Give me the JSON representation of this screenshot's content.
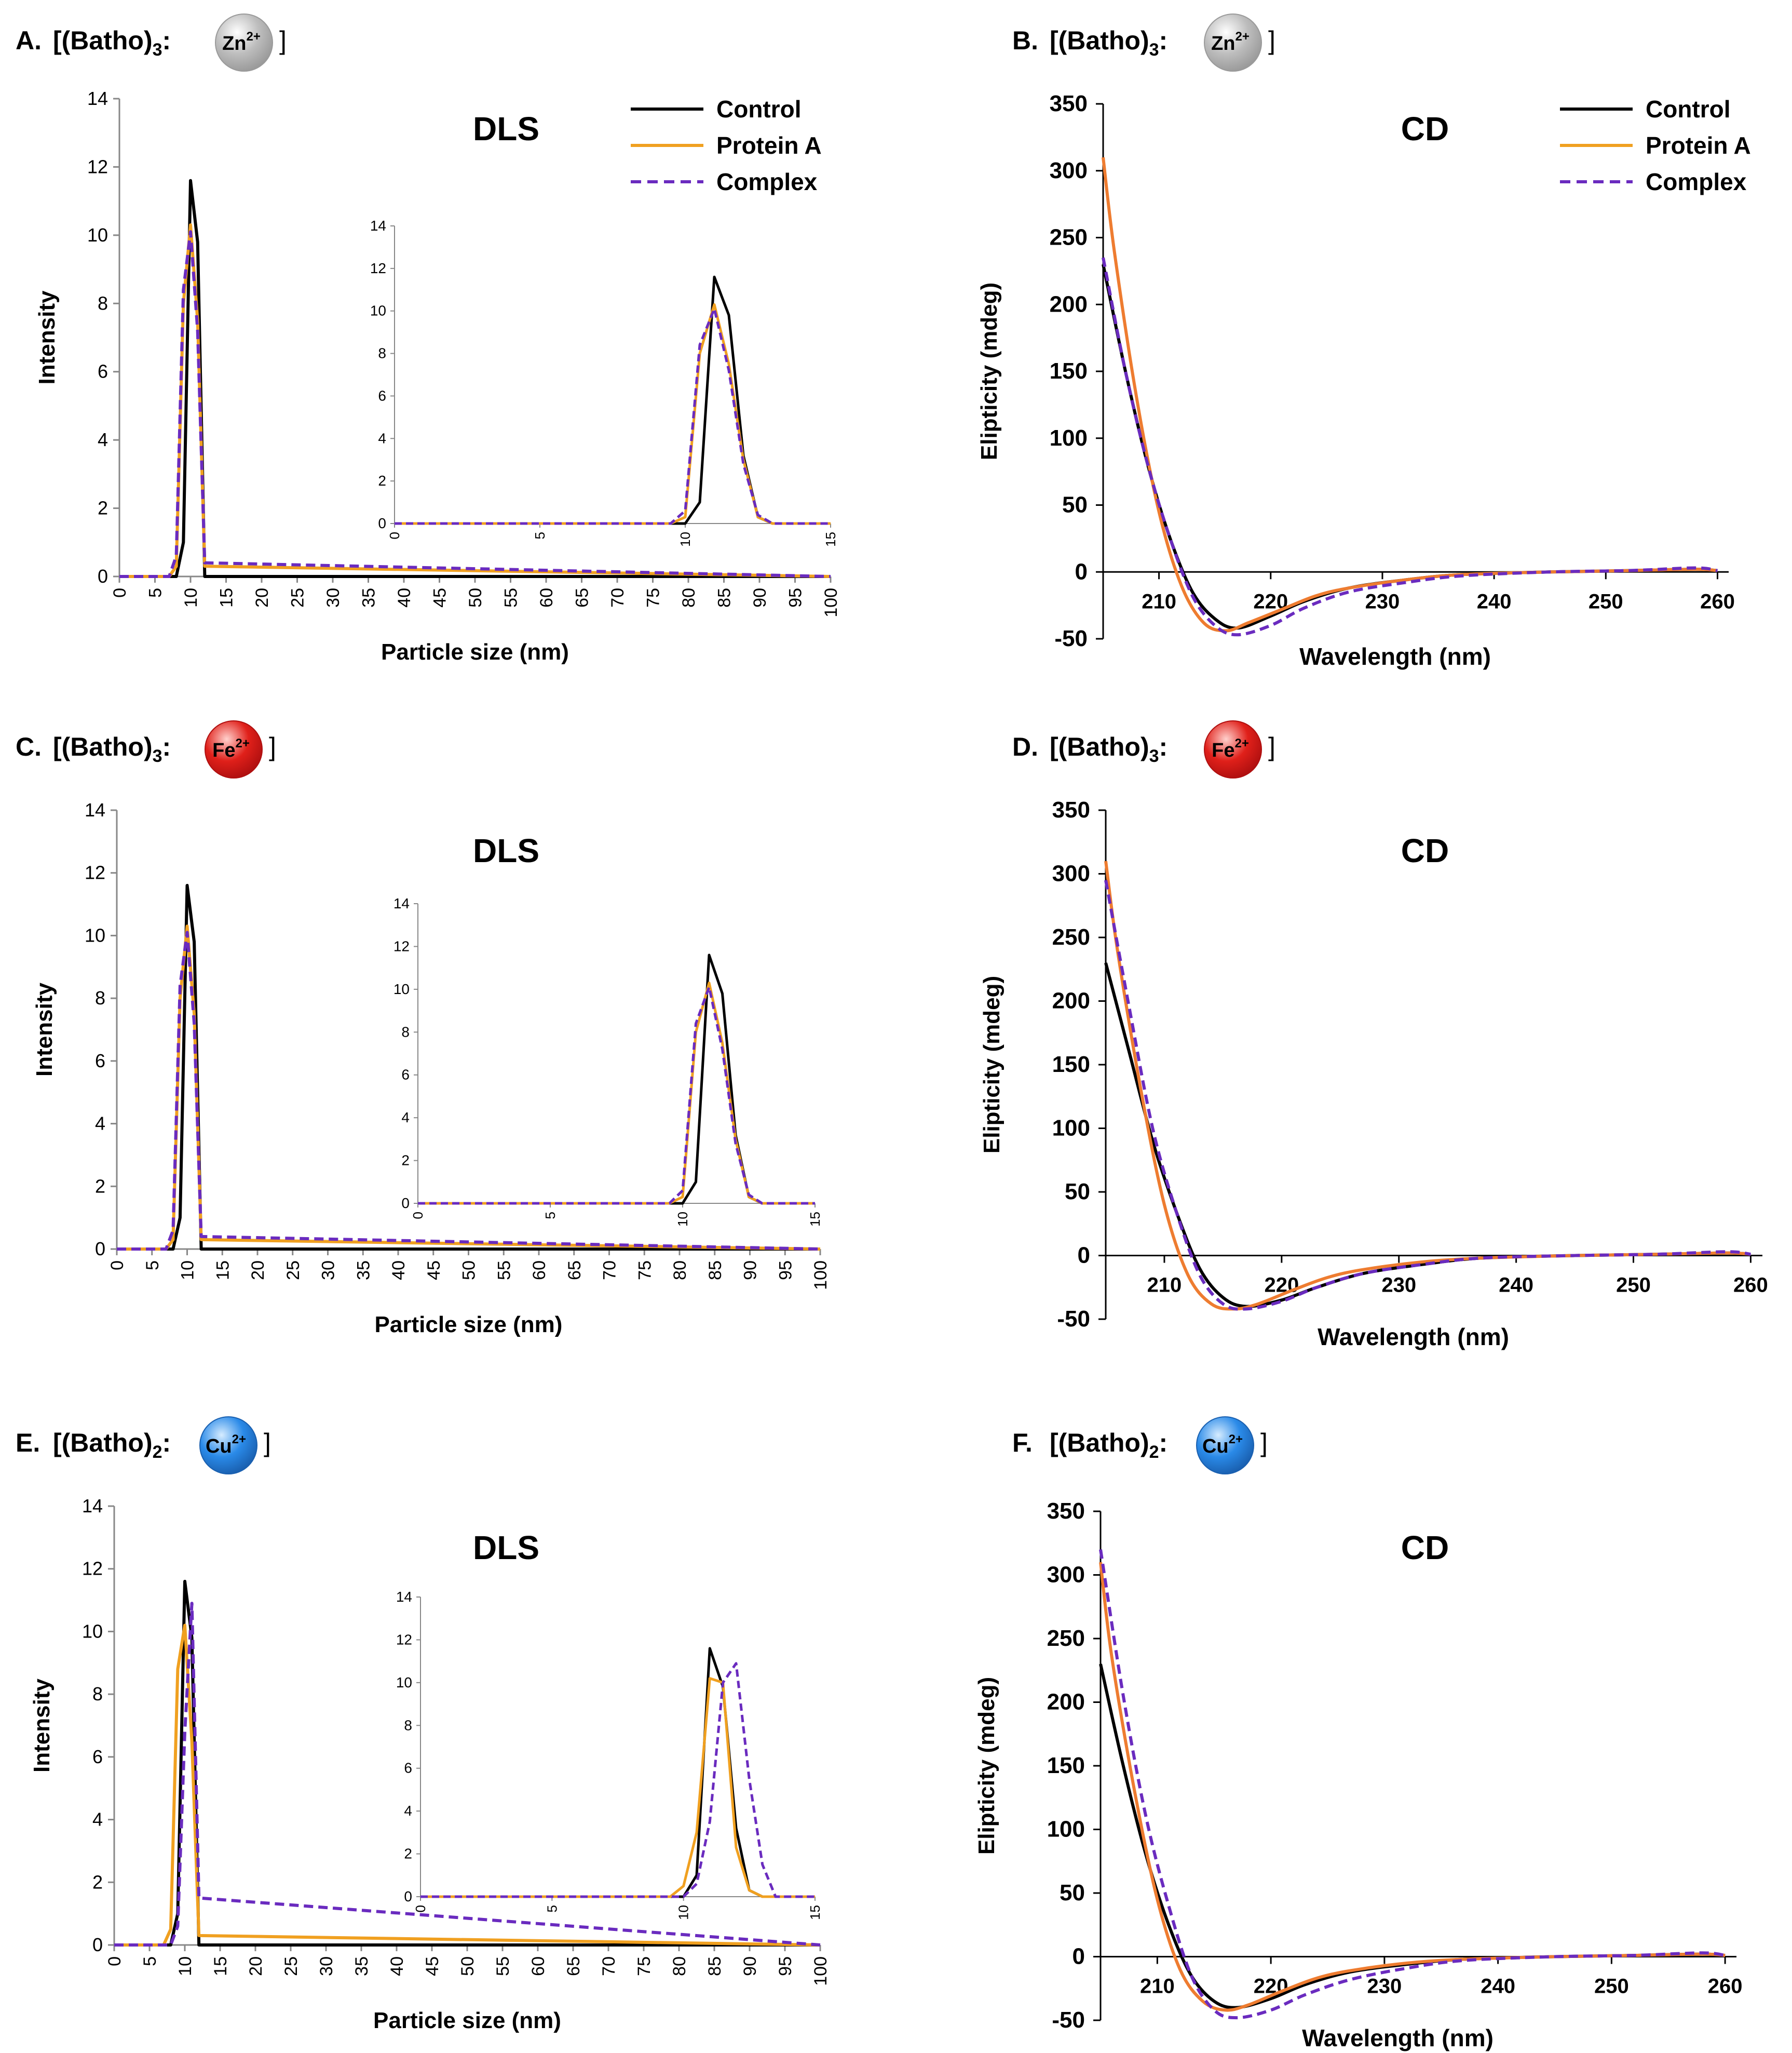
{
  "legend": {
    "items": [
      {
        "name": "Control",
        "color": "#000000",
        "dash": false
      },
      {
        "name": "Protein A",
        "color": "#f0a020",
        "dash": false
      },
      {
        "name": "Complex",
        "color": "#6a2bbf",
        "dash": true
      }
    ]
  },
  "colors": {
    "control": "#000000",
    "protein_a": "#f0a020",
    "complex": "#6a2bbf",
    "cd_protein_a": "#ee7c30"
  },
  "ions": {
    "zn": {
      "symbol": "Zn",
      "charge": "2+",
      "base": "#bdbdbd",
      "hi": "#ffffff",
      "edge": "#9a9a9a"
    },
    "fe": {
      "symbol": "Fe",
      "charge": "2+",
      "base": "#e0201a",
      "hi": "#ffd0cc",
      "edge": "#b01010"
    },
    "cu": {
      "symbol": "Cu",
      "charge": "2+",
      "base": "#2a8ae8",
      "hi": "#d6ecff",
      "edge": "#1a60b0"
    }
  },
  "panels": [
    {
      "letter": "A.",
      "prefix": "[(Batho)",
      "sub": "3",
      "colon": ":",
      "suffix": "]",
      "ion": "zn"
    },
    {
      "letter": "B.",
      "prefix": "[(Batho)",
      "sub": "3",
      "colon": ":",
      "suffix": "]",
      "ion": "zn"
    },
    {
      "letter": "C.",
      "prefix": "[(Batho)",
      "sub": "3",
      "colon": ":",
      "suffix": "]",
      "ion": "fe"
    },
    {
      "letter": "D.",
      "prefix": "[(Batho)",
      "sub": "3",
      "colon": ":",
      "suffix": "]",
      "ion": "fe"
    },
    {
      "letter": "E.",
      "prefix": "[(Batho)",
      "sub": "2",
      "colon": ":",
      "suffix": "]",
      "ion": "cu"
    },
    {
      "letter": "F.",
      "prefix": "[(Batho)",
      "sub": "2",
      "colon": ":",
      "suffix": "]",
      "ion": "cu"
    }
  ],
  "chart_data": [
    {
      "id": "A",
      "type": "line",
      "title": "DLS",
      "xlabel": "Particle size (nm)",
      "ylabel": "Intensity",
      "xlim": [
        0,
        100
      ],
      "ylim": [
        0,
        14
      ],
      "xticks": [
        0,
        5,
        10,
        15,
        20,
        25,
        30,
        35,
        40,
        45,
        50,
        55,
        60,
        65,
        70,
        75,
        80,
        85,
        90,
        95,
        100
      ],
      "yticks": [
        0,
        2,
        4,
        6,
        8,
        10,
        12,
        14
      ],
      "series": [
        {
          "name": "Control",
          "x": [
            0,
            7,
            8,
            9,
            10,
            11,
            12,
            100
          ],
          "y": [
            0,
            0,
            0,
            1.0,
            11.6,
            9.8,
            0,
            0
          ]
        },
        {
          "name": "Protein A",
          "x": [
            0,
            7,
            8,
            9,
            10,
            11,
            12,
            100
          ],
          "y": [
            0,
            0,
            0.3,
            8.0,
            10.3,
            7.5,
            0.3,
            0
          ]
        },
        {
          "name": "Complex",
          "x": [
            0,
            7,
            8,
            9,
            10,
            11,
            12,
            100
          ],
          "y": [
            0,
            0,
            0.6,
            8.4,
            10.1,
            7.2,
            0.4,
            0
          ]
        }
      ],
      "inset": {
        "xlim": [
          0,
          15
        ],
        "ylim": [
          0,
          14
        ],
        "xticks": [
          0,
          5,
          10,
          15
        ],
        "yticks": [
          0,
          2,
          4,
          6,
          8,
          10,
          12,
          14
        ],
        "series": [
          {
            "name": "Control",
            "x": [
              0,
              9.5,
              10,
              10.5,
              11,
              11.5,
              12,
              12.5,
              13,
              15
            ],
            "y": [
              0,
              0,
              0,
              1.0,
              11.6,
              9.8,
              3.2,
              0.3,
              0,
              0
            ]
          },
          {
            "name": "Protein A",
            "x": [
              0,
              9.5,
              10,
              10.5,
              11,
              11.5,
              12,
              12.5,
              13,
              15
            ],
            "y": [
              0,
              0,
              0.3,
              8.0,
              10.3,
              7.5,
              3.0,
              0.3,
              0,
              0
            ]
          },
          {
            "name": "Complex",
            "x": [
              0,
              9.5,
              10,
              10.5,
              11,
              11.5,
              12,
              12.5,
              13,
              15
            ],
            "y": [
              0,
              0,
              0.6,
              8.4,
              10.1,
              7.2,
              2.8,
              0.4,
              0,
              0
            ]
          }
        ]
      }
    },
    {
      "id": "B",
      "type": "line",
      "title": "CD",
      "xlabel": "Wavelength (nm)",
      "ylabel": "Elipticity (mdeg)",
      "xlim": [
        205,
        261
      ],
      "ylim": [
        -50,
        350
      ],
      "xticks": [
        210,
        220,
        230,
        240,
        250,
        260
      ],
      "yticks": [
        -50,
        0,
        50,
        100,
        150,
        200,
        250,
        300,
        350
      ],
      "series": [
        {
          "name": "Control",
          "x": [
            205,
            207,
            209,
            211,
            213,
            215,
            217,
            220,
            223,
            227,
            232,
            237,
            245,
            252,
            258,
            260
          ],
          "y": [
            230,
            150,
            80,
            25,
            -15,
            -35,
            -42,
            -33,
            -22,
            -12,
            -6,
            -2,
            0,
            1,
            2,
            1
          ]
        },
        {
          "name": "Protein A",
          "x": [
            205,
            206,
            208,
            210,
            212,
            214,
            216,
            218,
            221,
            224,
            227,
            232,
            237,
            245,
            252,
            258,
            260
          ],
          "y": [
            310,
            240,
            130,
            45,
            -10,
            -38,
            -44,
            -38,
            -28,
            -18,
            -12,
            -6,
            -2,
            0,
            1,
            2,
            1
          ]
        },
        {
          "name": "Complex",
          "x": [
            205,
            207,
            209,
            211,
            213,
            215,
            217,
            220,
            223,
            227,
            232,
            237,
            245,
            252,
            258,
            260
          ],
          "y": [
            235,
            150,
            80,
            25,
            -18,
            -40,
            -47,
            -40,
            -27,
            -15,
            -8,
            -3,
            0,
            1,
            3,
            1
          ]
        }
      ]
    },
    {
      "id": "C",
      "type": "line",
      "title": "DLS",
      "xlabel": "Particle size (nm)",
      "ylabel": "Intensity",
      "xlim": [
        0,
        100
      ],
      "ylim": [
        0,
        14
      ],
      "xticks": [
        0,
        5,
        10,
        15,
        20,
        25,
        30,
        35,
        40,
        45,
        50,
        55,
        60,
        65,
        70,
        75,
        80,
        85,
        90,
        95,
        100
      ],
      "yticks": [
        0,
        2,
        4,
        6,
        8,
        10,
        12,
        14
      ],
      "series": [
        {
          "name": "Control",
          "x": [
            0,
            7,
            8,
            9,
            10,
            11,
            12,
            100
          ],
          "y": [
            0,
            0,
            0,
            1.0,
            11.6,
            9.8,
            0,
            0
          ]
        },
        {
          "name": "Protein A",
          "x": [
            0,
            7,
            8,
            9,
            10,
            11,
            12,
            100
          ],
          "y": [
            0,
            0,
            0.3,
            8.0,
            10.3,
            7.5,
            0.3,
            0
          ]
        },
        {
          "name": "Complex",
          "x": [
            0,
            7,
            8,
            9,
            10,
            11,
            12,
            100
          ],
          "y": [
            0,
            0,
            0.6,
            8.4,
            10.1,
            7.2,
            0.4,
            0
          ]
        }
      ],
      "inset": {
        "xlim": [
          0,
          15
        ],
        "ylim": [
          0,
          14
        ],
        "xticks": [
          0,
          5,
          10,
          15
        ],
        "yticks": [
          0,
          2,
          4,
          6,
          8,
          10,
          12,
          14
        ],
        "series": [
          {
            "name": "Control",
            "x": [
              0,
              9.5,
              10,
              10.5,
              11,
              11.5,
              12,
              12.5,
              13,
              15
            ],
            "y": [
              0,
              0,
              0,
              1.0,
              11.6,
              9.8,
              3.2,
              0.3,
              0,
              0
            ]
          },
          {
            "name": "Protein A",
            "x": [
              0,
              9.5,
              10,
              10.5,
              11,
              11.5,
              12,
              12.5,
              13,
              15
            ],
            "y": [
              0,
              0,
              0.3,
              8.0,
              10.3,
              7.5,
              3.0,
              0.3,
              0,
              0
            ]
          },
          {
            "name": "Complex",
            "x": [
              0,
              9.5,
              10,
              10.5,
              11,
              11.5,
              12,
              12.5,
              13,
              15
            ],
            "y": [
              0,
              0,
              0.6,
              8.4,
              10.1,
              7.2,
              2.8,
              0.4,
              0,
              0
            ]
          }
        ]
      }
    },
    {
      "id": "D",
      "type": "line",
      "title": "CD",
      "xlabel": "Wavelength (nm)",
      "ylabel": "Elipticity (mdeg)",
      "xlim": [
        205,
        261
      ],
      "ylim": [
        -50,
        350
      ],
      "xticks": [
        210,
        220,
        230,
        240,
        250,
        260
      ],
      "yticks": [
        -50,
        0,
        50,
        100,
        150,
        200,
        250,
        300,
        350
      ],
      "series": [
        {
          "name": "Control",
          "x": [
            205,
            207,
            209,
            211,
            213,
            215,
            217,
            220,
            223,
            227,
            232,
            237,
            245,
            252,
            258,
            260
          ],
          "y": [
            230,
            160,
            90,
            35,
            -10,
            -33,
            -40,
            -35,
            -25,
            -14,
            -7,
            -2,
            0,
            1,
            2,
            1
          ]
        },
        {
          "name": "Protein A",
          "x": [
            205,
            206,
            208,
            210,
            212,
            214,
            216,
            218,
            221,
            224,
            227,
            232,
            237,
            245,
            252,
            258,
            260
          ],
          "y": [
            310,
            240,
            130,
            40,
            -15,
            -38,
            -42,
            -38,
            -27,
            -17,
            -11,
            -5,
            -2,
            0,
            1,
            2,
            1
          ]
        },
        {
          "name": "Complex",
          "x": [
            205,
            207,
            209,
            211,
            213,
            215,
            217,
            220,
            223,
            227,
            232,
            237,
            245,
            252,
            258,
            260
          ],
          "y": [
            295,
            195,
            100,
            35,
            -15,
            -38,
            -42,
            -36,
            -25,
            -14,
            -7,
            -2,
            0,
            1,
            3,
            1
          ]
        }
      ]
    },
    {
      "id": "E",
      "type": "line",
      "title": "DLS",
      "xlabel": "Particle size (nm)",
      "ylabel": "Intensity",
      "xlim": [
        0,
        100
      ],
      "ylim": [
        0,
        14
      ],
      "xticks": [
        0,
        5,
        10,
        15,
        20,
        25,
        30,
        35,
        40,
        45,
        50,
        55,
        60,
        65,
        70,
        75,
        80,
        85,
        90,
        95,
        100
      ],
      "yticks": [
        0,
        2,
        4,
        6,
        8,
        10,
        12,
        14
      ],
      "series": [
        {
          "name": "Control",
          "x": [
            0,
            7,
            8,
            9,
            10,
            11,
            12,
            100
          ],
          "y": [
            0,
            0,
            0,
            1.0,
            11.6,
            9.8,
            0,
            0
          ]
        },
        {
          "name": "Protein A",
          "x": [
            0,
            7,
            8,
            9,
            10,
            11,
            12,
            100
          ],
          "y": [
            0,
            0,
            0.5,
            8.8,
            10.2,
            6.5,
            0.3,
            0
          ]
        },
        {
          "name": "Complex",
          "x": [
            0,
            7,
            8,
            9,
            10,
            11,
            12,
            100
          ],
          "y": [
            0,
            0,
            0,
            0.6,
            6.8,
            10.9,
            1.5,
            0
          ]
        }
      ],
      "inset": {
        "xlim": [
          0,
          15
        ],
        "ylim": [
          0,
          14
        ],
        "xticks": [
          0,
          5,
          10,
          15
        ],
        "yticks": [
          0,
          2,
          4,
          6,
          8,
          10,
          12,
          14
        ],
        "series": [
          {
            "name": "Control",
            "x": [
              0,
              9.5,
              10,
              10.5,
              11,
              11.5,
              12,
              12.5,
              13,
              15
            ],
            "y": [
              0,
              0,
              0,
              1.0,
              11.6,
              9.8,
              3.2,
              0.3,
              0,
              0
            ]
          },
          {
            "name": "Protein A",
            "x": [
              0,
              9.5,
              10,
              10.5,
              11,
              11.5,
              12,
              12.5,
              13,
              15
            ],
            "y": [
              0,
              0,
              0.5,
              3.0,
              10.2,
              10.0,
              2.3,
              0.3,
              0,
              0
            ]
          },
          {
            "name": "Complex",
            "x": [
              0,
              10,
              10.5,
              11,
              11.5,
              12,
              12.5,
              13,
              13.5,
              15
            ],
            "y": [
              0,
              0,
              0.6,
              3.5,
              10.0,
              10.9,
              5.5,
              1.5,
              0,
              0
            ]
          }
        ]
      }
    },
    {
      "id": "F",
      "type": "line",
      "title": "CD",
      "xlabel": "Wavelength (nm)",
      "ylabel": "Elipticity (mdeg)",
      "xlim": [
        205,
        261
      ],
      "ylim": [
        -50,
        350
      ],
      "xticks": [
        210,
        220,
        230,
        240,
        250,
        260
      ],
      "yticks": [
        -50,
        0,
        50,
        100,
        150,
        200,
        250,
        300,
        350
      ],
      "series": [
        {
          "name": "Control",
          "x": [
            205,
            207,
            209,
            211,
            213,
            215,
            217,
            220,
            223,
            227,
            232,
            237,
            245,
            252,
            258,
            260
          ],
          "y": [
            230,
            150,
            80,
            25,
            -15,
            -35,
            -40,
            -33,
            -22,
            -12,
            -6,
            -2,
            0,
            1,
            2,
            1
          ]
        },
        {
          "name": "Protein A",
          "x": [
            205,
            206,
            208,
            210,
            212,
            214,
            216,
            218,
            221,
            224,
            227,
            232,
            237,
            245,
            252,
            258,
            260
          ],
          "y": [
            310,
            235,
            130,
            45,
            -10,
            -35,
            -42,
            -38,
            -27,
            -17,
            -11,
            -5,
            -2,
            0,
            1,
            2,
            1
          ]
        },
        {
          "name": "Complex",
          "x": [
            205,
            207,
            209,
            211,
            213,
            215,
            217,
            220,
            223,
            227,
            232,
            237,
            245,
            252,
            258,
            260
          ],
          "y": [
            320,
            205,
            110,
            40,
            -15,
            -42,
            -48,
            -42,
            -30,
            -18,
            -9,
            -3,
            0,
            1,
            3,
            1
          ]
        }
      ]
    }
  ]
}
